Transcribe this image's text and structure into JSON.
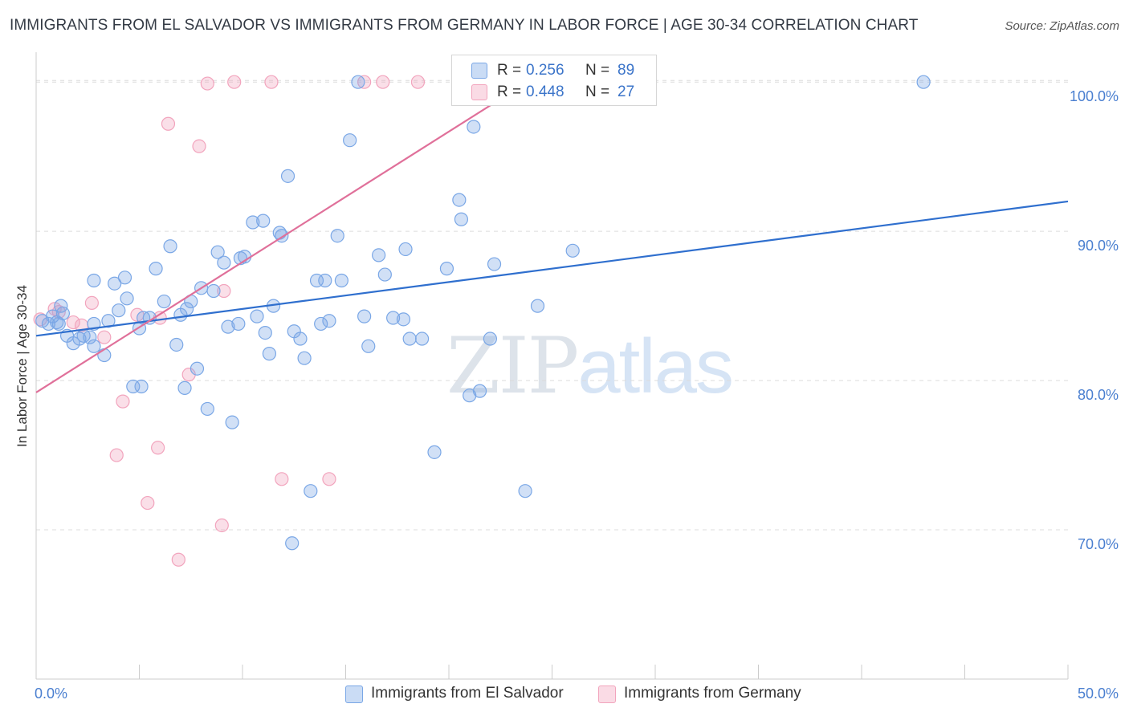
{
  "title": "IMMIGRANTS FROM EL SALVADOR VS IMMIGRANTS FROM GERMANY IN LABOR FORCE | AGE 30-34 CORRELATION CHART",
  "source": "Source: ZipAtlas.com",
  "watermark": {
    "zip": "ZIP",
    "atlas": "atlas"
  },
  "stats": {
    "el_salvador": {
      "r_label": "R =",
      "r_value": "0.256",
      "n_label": "N =",
      "n_value": "89",
      "color": "#7aa7e6"
    },
    "germany": {
      "r_label": "R =",
      "r_value": "0.448",
      "n_label": "N =",
      "n_value": "27",
      "color": "#f2a4bd"
    }
  },
  "legend": {
    "el_salvador": "Immigrants from El Salvador",
    "germany": "Immigrants from Germany"
  },
  "chart_data": {
    "type": "scatter",
    "title": "IMMIGRANTS FROM EL SALVADOR VS IMMIGRANTS FROM GERMANY IN LABOR FORCE | AGE 30-34 CORRELATION CHART",
    "xlabel": "",
    "ylabel": "In Labor Force | Age 30-34",
    "xlim": [
      0,
      50
    ],
    "ylim": [
      60,
      102
    ],
    "x_ticks": [
      "0.0%",
      "50.0%"
    ],
    "y_ticks": [
      {
        "value": 100,
        "label": "100.0%"
      },
      {
        "value": 90,
        "label": "90.0%"
      },
      {
        "value": 80,
        "label": "80.0%"
      },
      {
        "value": 70,
        "label": "70.0%"
      }
    ],
    "grid": true,
    "legend_position": "bottom",
    "series": [
      {
        "name": "Immigrants from El Salvador",
        "color": "#7aa7e6",
        "line_color": "#2f6fce",
        "trend": {
          "x": [
            0,
            50
          ],
          "y": [
            83.0,
            92.0
          ]
        },
        "points": [
          [
            0.3,
            84.0
          ],
          [
            0.6,
            83.8
          ],
          [
            0.8,
            84.3
          ],
          [
            1.0,
            83.9
          ],
          [
            1.2,
            85.0
          ],
          [
            1.3,
            84.5
          ],
          [
            1.5,
            83.0
          ],
          [
            1.8,
            82.5
          ],
          [
            2.1,
            82.8
          ],
          [
            2.3,
            83.0
          ],
          [
            2.8,
            83.8
          ],
          [
            2.8,
            82.3
          ],
          [
            3.3,
            81.7
          ],
          [
            3.5,
            84.0
          ],
          [
            2.8,
            86.7
          ],
          [
            3.8,
            86.5
          ],
          [
            4.0,
            84.7
          ],
          [
            4.3,
            86.9
          ],
          [
            4.4,
            85.5
          ],
          [
            5.0,
            83.5
          ],
          [
            5.2,
            84.2
          ],
          [
            5.5,
            84.2
          ],
          [
            4.7,
            79.6
          ],
          [
            5.1,
            79.6
          ],
          [
            5.8,
            87.5
          ],
          [
            6.2,
            85.3
          ],
          [
            6.5,
            89.0
          ],
          [
            6.8,
            82.4
          ],
          [
            7.0,
            84.4
          ],
          [
            7.3,
            84.8
          ],
          [
            7.5,
            85.3
          ],
          [
            7.2,
            79.5
          ],
          [
            7.8,
            80.8
          ],
          [
            8.0,
            86.2
          ],
          [
            8.3,
            78.1
          ],
          [
            8.6,
            86.0
          ],
          [
            8.8,
            88.6
          ],
          [
            9.1,
            87.9
          ],
          [
            9.3,
            83.6
          ],
          [
            9.5,
            77.2
          ],
          [
            9.9,
            88.2
          ],
          [
            9.8,
            83.8
          ],
          [
            10.1,
            88.3
          ],
          [
            10.5,
            90.6
          ],
          [
            10.7,
            84.3
          ],
          [
            11.0,
            90.7
          ],
          [
            11.1,
            83.2
          ],
          [
            11.3,
            81.8
          ],
          [
            11.5,
            85.0
          ],
          [
            11.8,
            89.9
          ],
          [
            11.9,
            89.7
          ],
          [
            12.2,
            93.7
          ],
          [
            12.5,
            83.3
          ],
          [
            12.8,
            82.8
          ],
          [
            13.0,
            81.5
          ],
          [
            13.3,
            72.6
          ],
          [
            12.4,
            69.1
          ],
          [
            13.6,
            86.7
          ],
          [
            13.8,
            83.8
          ],
          [
            14.0,
            86.7
          ],
          [
            14.2,
            84.0
          ],
          [
            14.6,
            89.7
          ],
          [
            14.8,
            86.7
          ],
          [
            15.2,
            96.1
          ],
          [
            15.9,
            84.3
          ],
          [
            16.1,
            82.3
          ],
          [
            15.6,
            100.0
          ],
          [
            16.6,
            88.4
          ],
          [
            16.9,
            87.1
          ],
          [
            17.3,
            84.2
          ],
          [
            17.8,
            84.1
          ],
          [
            17.9,
            88.8
          ],
          [
            18.1,
            82.8
          ],
          [
            18.7,
            82.8
          ],
          [
            19.3,
            75.2
          ],
          [
            19.9,
            87.5
          ],
          [
            20.5,
            92.1
          ],
          [
            20.6,
            90.8
          ],
          [
            21.0,
            79.0
          ],
          [
            21.2,
            97.0
          ],
          [
            21.5,
            79.3
          ],
          [
            22.0,
            82.8
          ],
          [
            22.2,
            87.8
          ],
          [
            23.7,
            72.6
          ],
          [
            24.3,
            85.0
          ],
          [
            26.0,
            88.7
          ],
          [
            43.0,
            100.0
          ],
          [
            1.1,
            83.8
          ],
          [
            2.6,
            82.9
          ]
        ]
      },
      {
        "name": "Immigrants from Germany",
        "color": "#f2a4bd",
        "line_color": "#e0709a",
        "trend": {
          "x": [
            0,
            23.8
          ],
          "y": [
            79.2,
            100.0
          ]
        },
        "points": [
          [
            0.2,
            84.1
          ],
          [
            0.9,
            84.8
          ],
          [
            1.1,
            84.6
          ],
          [
            1.8,
            83.9
          ],
          [
            2.2,
            83.7
          ],
          [
            2.7,
            85.2
          ],
          [
            3.3,
            82.9
          ],
          [
            3.9,
            75.0
          ],
          [
            4.2,
            78.6
          ],
          [
            4.9,
            84.4
          ],
          [
            5.4,
            71.8
          ],
          [
            5.9,
            75.5
          ],
          [
            6.0,
            84.2
          ],
          [
            6.4,
            97.2
          ],
          [
            6.9,
            68.0
          ],
          [
            7.4,
            80.4
          ],
          [
            7.9,
            95.7
          ],
          [
            8.3,
            99.9
          ],
          [
            9.1,
            86.0
          ],
          [
            9.0,
            70.3
          ],
          [
            9.6,
            100.0
          ],
          [
            11.4,
            100.0
          ],
          [
            11.9,
            73.4
          ],
          [
            14.2,
            73.4
          ],
          [
            15.9,
            100.0
          ],
          [
            16.8,
            100.0
          ],
          [
            18.5,
            100.0
          ]
        ]
      }
    ]
  }
}
